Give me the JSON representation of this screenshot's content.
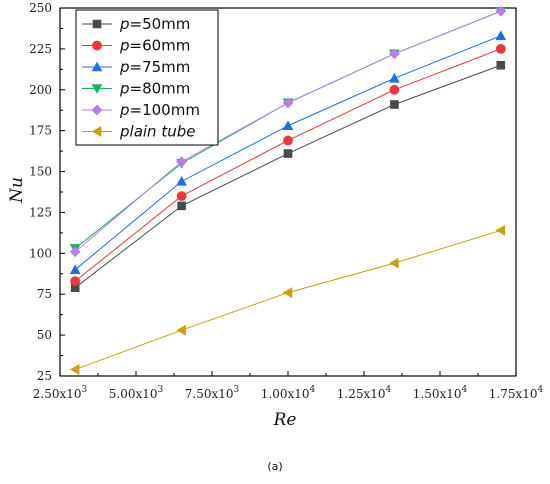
{
  "chart_data": {
    "type": "line",
    "xlabel": "Re",
    "ylabel": "Nu",
    "xlim": [
      2500,
      17500
    ],
    "ylim": [
      25,
      250
    ],
    "xticks": [
      2500,
      5000,
      7500,
      10000,
      12500,
      15000,
      17500
    ],
    "xtick_labels": [
      [
        "2.50x10",
        "3"
      ],
      [
        "5.00x10",
        "3"
      ],
      [
        "7.50x10",
        "3"
      ],
      [
        "1.00x10",
        "4"
      ],
      [
        "1.25x10",
        "4"
      ],
      [
        "1.50x10",
        "4"
      ],
      [
        "1.75x10",
        "4"
      ]
    ],
    "yticks": [
      25,
      50,
      75,
      100,
      125,
      150,
      175,
      200,
      225,
      250
    ],
    "grid": false,
    "legend": "top-left",
    "x": [
      3000,
      6500,
      10000,
      13500,
      17000
    ],
    "series": [
      {
        "name": "p=50mm",
        "label_italic": "p",
        "label_rest": "=50mm",
        "color": "#4a4a4a",
        "marker": "square",
        "values": [
          79,
          129,
          161,
          191,
          215
        ]
      },
      {
        "name": "p=60mm",
        "label_italic": "p",
        "label_rest": "=60mm",
        "color": "#e8383b",
        "marker": "circle",
        "values": [
          83,
          135,
          169,
          200,
          225
        ]
      },
      {
        "name": "p=75mm",
        "label_italic": "p",
        "label_rest": "=75mm",
        "color": "#1f6fe0",
        "marker": "triangle-up",
        "values": [
          90,
          144,
          178,
          207,
          233
        ]
      },
      {
        "name": "p=80mm",
        "label_italic": "p",
        "label_rest": "=80mm",
        "color": "#1fae5a",
        "marker": "triangle-down",
        "values": [
          103,
          155,
          192,
          222,
          248
        ]
      },
      {
        "name": "p=100mm",
        "label_italic": "p",
        "label_rest": "=100mm",
        "color": "#b77ee8",
        "marker": "diamond",
        "values": [
          101,
          156,
          192,
          222,
          248
        ]
      },
      {
        "name": "plain tube",
        "label_italic": "plain tube",
        "label_rest": "",
        "color": "#c9a010",
        "marker": "triangle-left",
        "values": [
          29,
          53,
          76,
          94,
          114
        ]
      }
    ]
  },
  "caption": "(a)"
}
